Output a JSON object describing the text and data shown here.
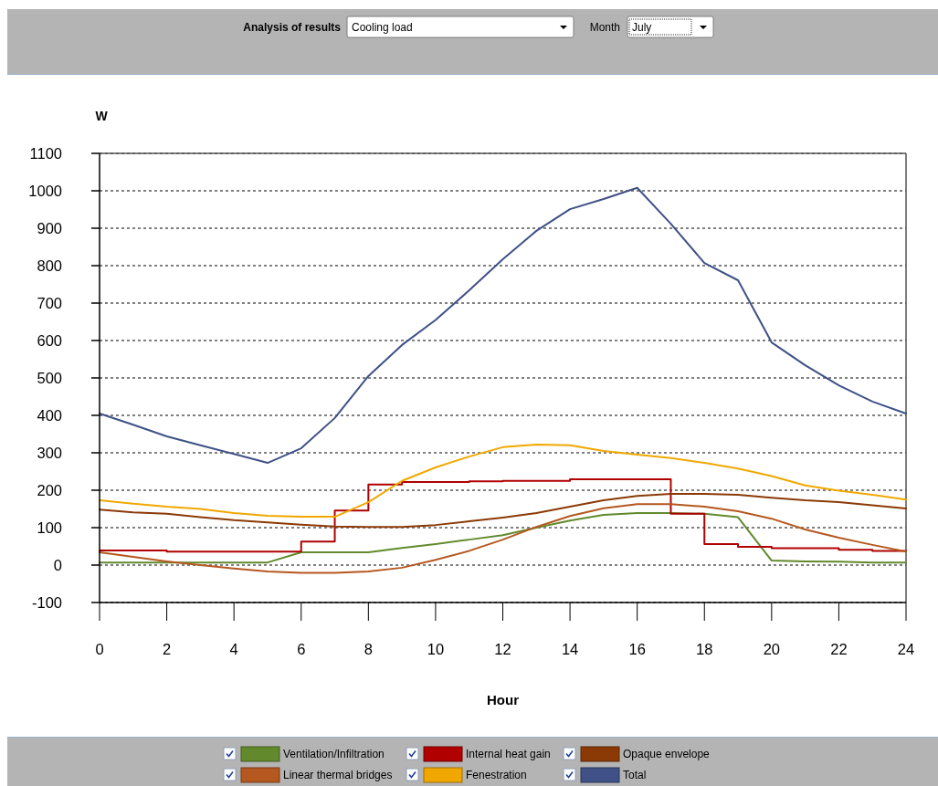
{
  "chart_data": {
    "type": "line",
    "xlabel": "Hour",
    "ylabel": "W",
    "annotations": [
      "Analysis of results",
      "Cooling load",
      "Month",
      "July"
    ],
    "x": [
      0,
      1,
      2,
      3,
      4,
      5,
      6,
      7,
      8,
      9,
      10,
      11,
      12,
      13,
      14,
      15,
      16,
      17,
      18,
      19,
      20,
      21,
      22,
      23,
      24
    ],
    "xlim": [
      0,
      24
    ],
    "xticks": [
      0,
      2,
      4,
      6,
      8,
      10,
      12,
      14,
      16,
      18,
      20,
      22,
      24
    ],
    "ylim": [
      -100,
      1100
    ],
    "yticks": [
      -100,
      0,
      100,
      200,
      300,
      400,
      500,
      600,
      700,
      800,
      900,
      1000,
      1100
    ],
    "grid": "y",
    "legend": "bottom",
    "series": [
      {
        "name": "Ventilation/Infiltration",
        "color": "#628a2c",
        "values": [
          7,
          7,
          7,
          7,
          7,
          7,
          34,
          34,
          34,
          46,
          56,
          68,
          80,
          100,
          119,
          134,
          139,
          139,
          137,
          128,
          12,
          10,
          9,
          7,
          7
        ]
      },
      {
        "name": "Internal heat gain",
        "color": "#b00000",
        "type": "step",
        "values": [
          39,
          39,
          36,
          36,
          36,
          36,
          63,
          146,
          215,
          222,
          222,
          224,
          225,
          225,
          229,
          229,
          229,
          137,
          56,
          49,
          45,
          45,
          41,
          38,
          38
        ]
      },
      {
        "name": "Opaque envelope",
        "color": "#8b3a06",
        "values": [
          148,
          141,
          137,
          128,
          120,
          114,
          108,
          103,
          102,
          102,
          107,
          117,
          127,
          139,
          156,
          173,
          185,
          190,
          190,
          188,
          180,
          173,
          168,
          160,
          151
        ]
      },
      {
        "name": "Linear thermal bridges",
        "color": "#b5581f",
        "values": [
          34,
          22,
          10,
          0,
          -9,
          -17,
          -21,
          -21,
          -17,
          -7,
          14,
          38,
          68,
          102,
          131,
          152,
          163,
          163,
          156,
          144,
          124,
          95,
          73,
          54,
          36
        ]
      },
      {
        "name": "Fenestration",
        "color": "#f0a800",
        "values": [
          173,
          164,
          156,
          150,
          139,
          132,
          129,
          129,
          168,
          225,
          261,
          290,
          315,
          322,
          320,
          305,
          295,
          286,
          273,
          258,
          238,
          213,
          199,
          188,
          175
        ]
      },
      {
        "name": "Total",
        "color": "#3f5186",
        "values": [
          405,
          375,
          344,
          320,
          297,
          273,
          312,
          393,
          505,
          588,
          655,
          734,
          817,
          893,
          951,
          978,
          1008,
          912,
          807,
          761,
          595,
          534,
          480,
          437,
          405
        ]
      }
    ]
  }
}
